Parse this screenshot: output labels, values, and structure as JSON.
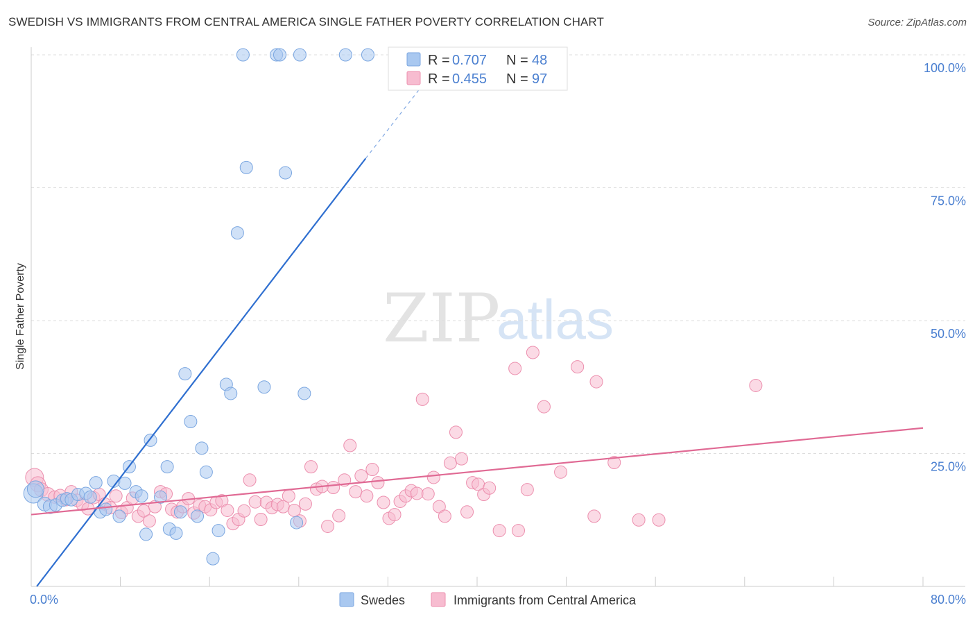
{
  "header": {
    "title": "SWEDISH VS IMMIGRANTS FROM CENTRAL AMERICA SINGLE FATHER POVERTY CORRELATION CHART",
    "source": "Source: ZipAtlas.com"
  },
  "watermark": {
    "zip": "ZIP",
    "atlas": "atlas"
  },
  "colors": {
    "blue_fill": "#a9c8f0",
    "blue_stroke": "#7aa6e0",
    "blue_line": "#2f6fd0",
    "pink_fill": "#f7bcd0",
    "pink_stroke": "#ec8fae",
    "pink_line": "#e06a94",
    "tick_text": "#4a7fd0",
    "grid": "#dddddd"
  },
  "chart_data": {
    "type": "scatter",
    "xlabel": "",
    "ylabel": "Single Father Poverty",
    "xlim": [
      0,
      80
    ],
    "ylim": [
      0,
      100
    ],
    "x_tick_labels": [
      {
        "value": 0,
        "label": "0.0%"
      },
      {
        "value": 80,
        "label": "80.0%"
      }
    ],
    "y_tick_labels": [
      {
        "value": 25,
        "label": "25.0%"
      },
      {
        "value": 50,
        "label": "50.0%"
      },
      {
        "value": 75,
        "label": "75.0%"
      },
      {
        "value": 100,
        "label": "100.0%"
      }
    ],
    "legend_top": [
      {
        "series": "Swedes",
        "r_label": "R =",
        "r_value": "0.707",
        "n_label": "N =",
        "n_value": "48"
      },
      {
        "series": "Immigrants from Central America",
        "r_label": "R =",
        "r_value": "0.455",
        "n_label": "N =",
        "n_value": "97"
      }
    ],
    "series": [
      {
        "name": "Swedes",
        "color": "blue",
        "trend": {
          "x0": 0.5,
          "y0": 0.0,
          "x1": 30.0,
          "y1": 80.5,
          "dash_to_x": 35.0,
          "dash_to_y": 94.0
        },
        "points": [
          [
            0.2,
            17.5,
            13
          ],
          [
            0.4,
            18.3,
            11
          ],
          [
            1.2,
            15.5,
            9
          ],
          [
            1.7,
            15.0,
            9
          ],
          [
            2.2,
            15.3,
            8
          ],
          [
            2.8,
            16.2,
            8
          ],
          [
            3.2,
            16.5,
            8
          ],
          [
            3.6,
            16.3,
            8
          ],
          [
            4.2,
            17.3,
            8
          ],
          [
            4.9,
            17.5,
            8
          ],
          [
            5.3,
            16.8,
            8
          ],
          [
            5.8,
            19.5,
            8
          ],
          [
            6.2,
            14.0,
            8
          ],
          [
            6.7,
            14.5,
            8
          ],
          [
            7.4,
            19.8,
            8
          ],
          [
            7.9,
            13.2,
            8
          ],
          [
            8.4,
            19.4,
            8
          ],
          [
            8.8,
            22.5,
            8
          ],
          [
            9.4,
            17.8,
            8
          ],
          [
            9.9,
            17.0,
            8
          ],
          [
            10.3,
            9.8,
            8
          ],
          [
            10.7,
            27.5,
            8
          ],
          [
            11.6,
            16.8,
            8
          ],
          [
            12.2,
            22.5,
            8
          ],
          [
            12.4,
            10.8,
            8
          ],
          [
            13.0,
            10.0,
            8
          ],
          [
            13.4,
            14.0,
            8
          ],
          [
            13.8,
            40.0,
            8
          ],
          [
            14.3,
            31.0,
            8
          ],
          [
            14.9,
            13.2,
            8
          ],
          [
            15.3,
            26.0,
            8
          ],
          [
            15.7,
            21.5,
            8
          ],
          [
            16.3,
            5.2,
            8
          ],
          [
            16.8,
            10.5,
            8
          ],
          [
            17.5,
            38.0,
            8
          ],
          [
            17.9,
            36.3,
            8
          ],
          [
            18.5,
            66.5,
            8
          ],
          [
            19.3,
            78.8,
            8
          ],
          [
            20.9,
            37.5,
            8
          ],
          [
            22.8,
            77.8,
            8
          ],
          [
            23.8,
            12.0,
            8
          ],
          [
            24.5,
            36.3,
            8
          ],
          [
            19.0,
            100,
            8
          ],
          [
            22.0,
            100,
            8
          ],
          [
            22.3,
            100,
            8
          ],
          [
            24.1,
            100,
            8
          ],
          [
            28.2,
            100,
            8
          ],
          [
            30.2,
            100,
            8
          ]
        ]
      },
      {
        "name": "Immigrants from Central America",
        "color": "pink",
        "trend": {
          "x0": 0.0,
          "y0": 13.5,
          "x1": 80.0,
          "y1": 29.8
        },
        "points": [
          [
            0.3,
            20.5,
            12
          ],
          [
            0.6,
            19.2,
            10
          ],
          [
            0.9,
            18.2,
            9
          ],
          [
            1.5,
            17.3,
            9
          ],
          [
            2.1,
            16.8,
            8
          ],
          [
            2.6,
            17.1,
            8
          ],
          [
            3.1,
            16.3,
            8
          ],
          [
            3.6,
            17.8,
            8
          ],
          [
            4.1,
            16.2,
            8
          ],
          [
            4.6,
            15.4,
            8
          ],
          [
            5.1,
            14.6,
            8
          ],
          [
            5.6,
            16.7,
            8
          ],
          [
            6.1,
            17.3,
            8
          ],
          [
            6.6,
            15.5,
            8
          ],
          [
            7.1,
            14.8,
            8
          ],
          [
            7.6,
            17.0,
            8
          ],
          [
            8.1,
            13.9,
            8
          ],
          [
            8.6,
            14.8,
            8
          ],
          [
            9.1,
            16.6,
            8
          ],
          [
            9.6,
            13.2,
            8
          ],
          [
            10.1,
            14.2,
            8
          ],
          [
            10.6,
            12.3,
            8
          ],
          [
            11.1,
            15.0,
            8
          ],
          [
            11.6,
            17.8,
            8
          ],
          [
            12.1,
            17.4,
            8
          ],
          [
            12.6,
            14.5,
            8
          ],
          [
            13.1,
            14.0,
            8
          ],
          [
            13.6,
            15.0,
            8
          ],
          [
            14.1,
            16.5,
            8
          ],
          [
            14.6,
            13.8,
            8
          ],
          [
            15.1,
            15.2,
            8
          ],
          [
            15.6,
            15.0,
            8
          ],
          [
            16.1,
            14.4,
            8
          ],
          [
            16.6,
            15.8,
            8
          ],
          [
            17.1,
            16.1,
            8
          ],
          [
            17.6,
            14.3,
            8
          ],
          [
            18.1,
            11.8,
            8
          ],
          [
            18.6,
            12.6,
            8
          ],
          [
            19.1,
            14.2,
            8
          ],
          [
            19.6,
            20.0,
            8
          ],
          [
            20.1,
            15.9,
            8
          ],
          [
            20.6,
            12.6,
            8
          ],
          [
            21.1,
            15.8,
            8
          ],
          [
            21.6,
            14.8,
            8
          ],
          [
            22.1,
            15.4,
            8
          ],
          [
            22.6,
            15.0,
            8
          ],
          [
            23.1,
            17.0,
            8
          ],
          [
            23.6,
            14.3,
            8
          ],
          [
            24.1,
            12.3,
            8
          ],
          [
            24.6,
            15.5,
            8
          ],
          [
            25.1,
            22.5,
            8
          ],
          [
            25.6,
            18.3,
            8
          ],
          [
            26.1,
            18.8,
            8
          ],
          [
            26.6,
            11.3,
            8
          ],
          [
            27.1,
            18.6,
            8
          ],
          [
            27.6,
            13.3,
            8
          ],
          [
            28.1,
            20.0,
            8
          ],
          [
            28.6,
            26.5,
            8
          ],
          [
            29.1,
            17.8,
            8
          ],
          [
            29.6,
            20.8,
            8
          ],
          [
            30.1,
            17.0,
            8
          ],
          [
            30.6,
            22.0,
            8
          ],
          [
            31.1,
            19.5,
            8
          ],
          [
            31.6,
            15.8,
            8
          ],
          [
            32.1,
            12.8,
            8
          ],
          [
            32.6,
            13.5,
            8
          ],
          [
            33.1,
            16.0,
            8
          ],
          [
            33.6,
            17.0,
            8
          ],
          [
            34.1,
            18.0,
            8
          ],
          [
            34.6,
            17.5,
            8
          ],
          [
            35.1,
            35.2,
            8
          ],
          [
            35.6,
            17.4,
            8
          ],
          [
            36.1,
            20.5,
            8
          ],
          [
            36.6,
            15.0,
            8
          ],
          [
            37.1,
            13.2,
            8
          ],
          [
            37.6,
            23.2,
            8
          ],
          [
            38.1,
            29.0,
            8
          ],
          [
            38.6,
            24.0,
            8
          ],
          [
            39.1,
            14.0,
            8
          ],
          [
            39.6,
            19.5,
            8
          ],
          [
            40.1,
            19.2,
            8
          ],
          [
            40.6,
            17.3,
            8
          ],
          [
            41.1,
            18.5,
            8
          ],
          [
            42.0,
            10.5,
            8
          ],
          [
            43.4,
            41.0,
            8
          ],
          [
            43.7,
            10.5,
            8
          ],
          [
            44.5,
            18.2,
            8
          ],
          [
            45.0,
            44.0,
            8
          ],
          [
            46.0,
            33.8,
            8
          ],
          [
            47.5,
            21.5,
            8
          ],
          [
            49.0,
            41.3,
            8
          ],
          [
            50.5,
            13.2,
            8
          ],
          [
            50.7,
            38.5,
            8
          ],
          [
            52.3,
            23.3,
            8
          ],
          [
            54.5,
            12.5,
            8
          ],
          [
            56.3,
            12.5,
            8
          ],
          [
            65.0,
            37.8,
            8
          ]
        ]
      }
    ]
  }
}
